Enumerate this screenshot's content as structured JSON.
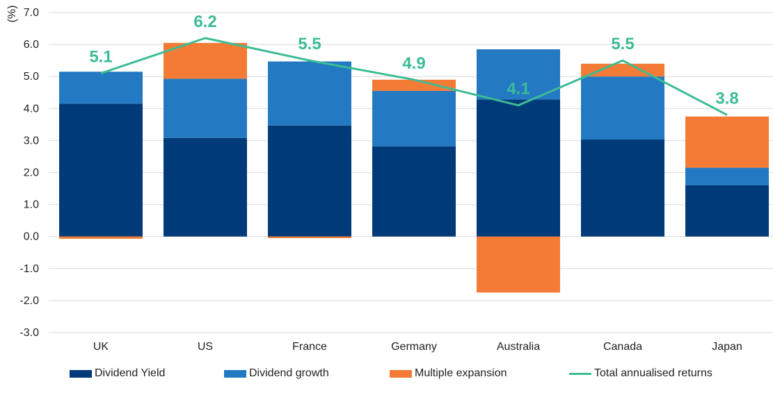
{
  "chart_data": {
    "type": "bar",
    "stacked": true,
    "categories": [
      "UK",
      "US",
      "France",
      "Germany",
      "Australia",
      "Canada",
      "Japan"
    ],
    "series": [
      {
        "name": "Dividend Yield",
        "values": [
          4.15,
          3.08,
          3.47,
          2.82,
          4.28,
          3.03,
          1.6
        ],
        "color": "#003a78"
      },
      {
        "name": "Dividend growth",
        "values": [
          1.0,
          1.85,
          2.0,
          1.73,
          1.57,
          1.97,
          0.55
        ],
        "color": "#2479c3"
      },
      {
        "name": "Multiple expansion",
        "values": [
          -0.07,
          1.12,
          -0.05,
          0.35,
          -1.75,
          0.4,
          1.6
        ],
        "color": "#f47b35"
      }
    ],
    "line_series": {
      "name": "Total annualised returns",
      "values": [
        5.1,
        6.2,
        5.5,
        4.9,
        4.1,
        5.5,
        3.8
      ],
      "color": "#3cbc95"
    },
    "data_labels": [
      "5.1",
      "6.2",
      "5.5",
      "4.9",
      "4.1",
      "5.5",
      "3.8"
    ],
    "y_unit_label": "(%)",
    "ylim": [
      -3.0,
      7.0
    ],
    "y_ticks": [
      7.0,
      6.0,
      5.0,
      4.0,
      3.0,
      2.0,
      1.0,
      0.0,
      -1.0,
      -2.0,
      -3.0
    ],
    "y_tick_labels": [
      "7.0",
      "6.0",
      "5.0",
      "4.0",
      "3.0",
      "2.0",
      "1.0",
      "0.0",
      "-1.0",
      "-2.0",
      "-3.0"
    ],
    "grid": true,
    "legend_position": "bottom",
    "grid_color": "#d9d9d9",
    "label_color": "#3cbc95"
  }
}
